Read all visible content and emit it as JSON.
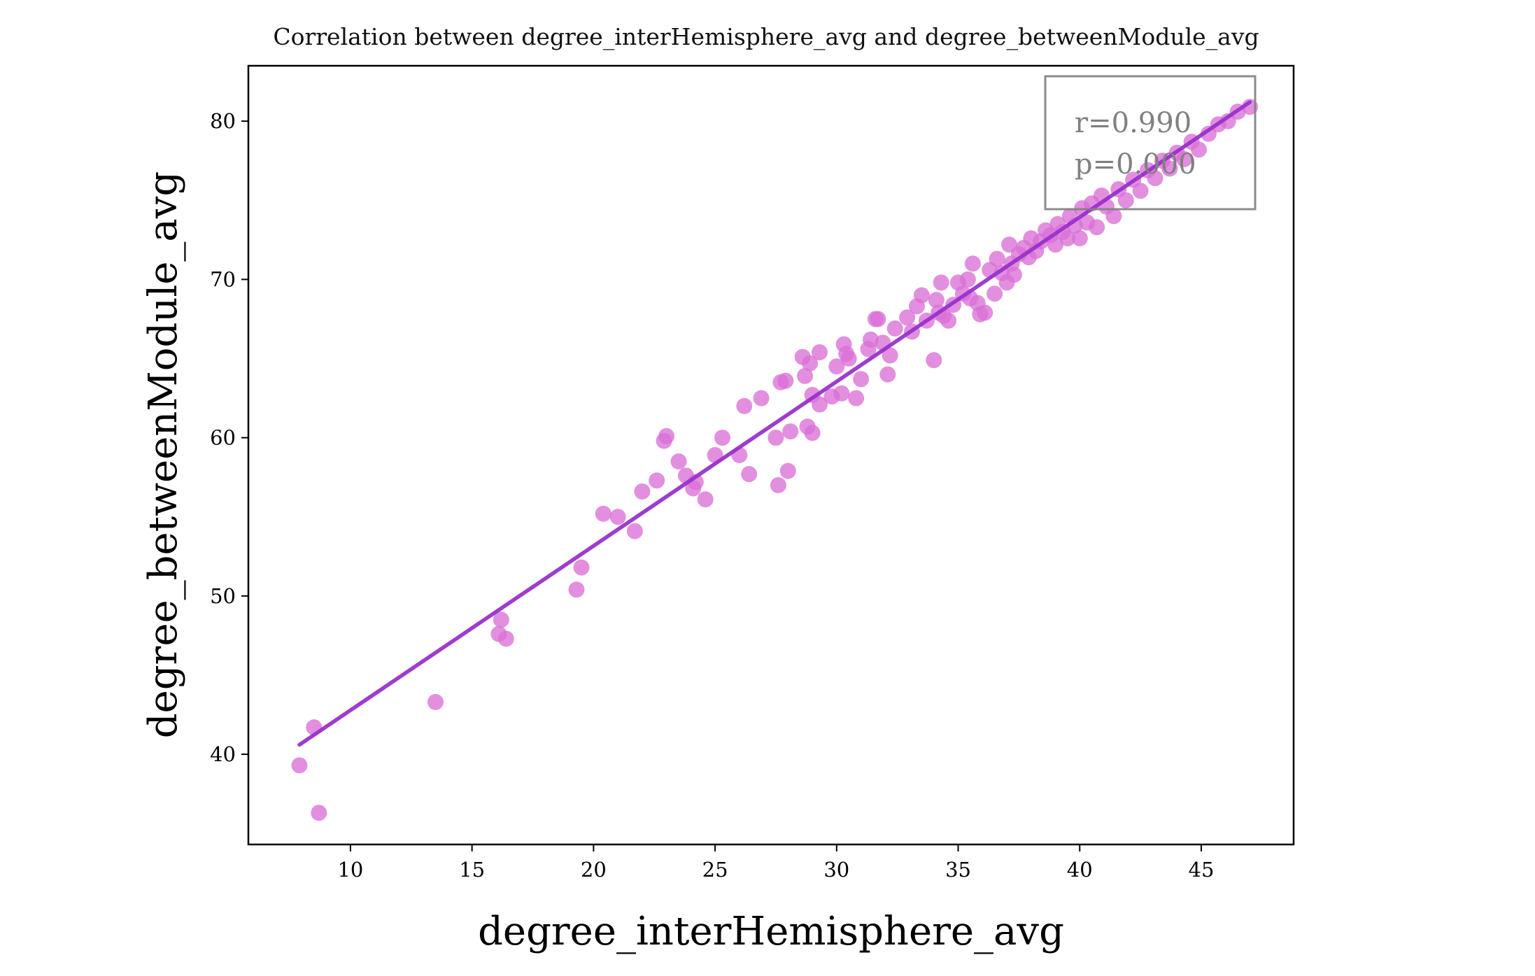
{
  "chart_data": {
    "type": "scatter",
    "title": "Correlation between degree_interHemisphere_avg and degree_betweenModule_avg",
    "xlabel": "degree_interHemisphere_avg",
    "ylabel": "degree_betweenModule_avg",
    "xlim": [
      5.8,
      48.8
    ],
    "ylim": [
      34.3,
      83.5
    ],
    "xticks": [
      10,
      15,
      20,
      25,
      30,
      35,
      40,
      45
    ],
    "yticks": [
      40,
      50,
      60,
      70,
      80
    ],
    "grid": false,
    "annotation": {
      "r_text": "r=0.990",
      "p_text": "p=0.000",
      "placement": "top-right"
    },
    "regression_line": {
      "x": [
        7.9,
        47.0
      ],
      "y": [
        40.6,
        81.2
      ],
      "color": "#9932cc"
    },
    "point_color": "#da70d6",
    "points": [
      [
        7.9,
        39.3
      ],
      [
        8.5,
        41.7
      ],
      [
        8.7,
        36.3
      ],
      [
        13.5,
        43.3
      ],
      [
        16.1,
        47.6
      ],
      [
        16.2,
        48.5
      ],
      [
        16.4,
        47.3
      ],
      [
        19.3,
        50.4
      ],
      [
        19.5,
        51.8
      ],
      [
        20.4,
        55.2
      ],
      [
        21.0,
        55.0
      ],
      [
        21.7,
        54.1
      ],
      [
        22.0,
        56.6
      ],
      [
        22.6,
        57.3
      ],
      [
        22.9,
        59.8
      ],
      [
        23.0,
        60.1
      ],
      [
        23.5,
        58.5
      ],
      [
        23.8,
        57.6
      ],
      [
        24.1,
        56.8
      ],
      [
        24.2,
        57.2
      ],
      [
        24.6,
        56.1
      ],
      [
        25.0,
        58.9
      ],
      [
        25.3,
        60.0
      ],
      [
        26.0,
        58.9
      ],
      [
        26.2,
        62.0
      ],
      [
        26.4,
        57.7
      ],
      [
        26.9,
        62.5
      ],
      [
        27.5,
        60.0
      ],
      [
        27.6,
        57.0
      ],
      [
        27.7,
        63.5
      ],
      [
        27.9,
        63.6
      ],
      [
        28.0,
        57.9
      ],
      [
        28.1,
        60.4
      ],
      [
        28.6,
        65.1
      ],
      [
        28.7,
        63.9
      ],
      [
        28.8,
        60.7
      ],
      [
        28.9,
        64.7
      ],
      [
        29.0,
        62.7
      ],
      [
        29.0,
        60.3
      ],
      [
        29.3,
        62.1
      ],
      [
        29.3,
        65.4
      ],
      [
        29.8,
        62.6
      ],
      [
        30.0,
        64.5
      ],
      [
        30.2,
        62.8
      ],
      [
        30.3,
        65.9
      ],
      [
        30.4,
        65.3
      ],
      [
        30.5,
        65.0
      ],
      [
        30.8,
        62.5
      ],
      [
        31.0,
        63.7
      ],
      [
        31.3,
        65.6
      ],
      [
        31.4,
        66.2
      ],
      [
        31.6,
        67.5
      ],
      [
        31.7,
        67.5
      ],
      [
        31.9,
        66.0
      ],
      [
        32.1,
        64.0
      ],
      [
        32.2,
        65.2
      ],
      [
        32.4,
        66.9
      ],
      [
        32.9,
        67.6
      ],
      [
        33.1,
        66.7
      ],
      [
        33.3,
        68.3
      ],
      [
        33.5,
        69.0
      ],
      [
        33.7,
        67.4
      ],
      [
        34.0,
        64.9
      ],
      [
        34.1,
        68.7
      ],
      [
        34.2,
        67.9
      ],
      [
        34.3,
        69.8
      ],
      [
        34.4,
        67.7
      ],
      [
        34.6,
        67.4
      ],
      [
        34.8,
        68.4
      ],
      [
        35.0,
        69.8
      ],
      [
        35.2,
        69.1
      ],
      [
        35.4,
        70.0
      ],
      [
        35.5,
        68.8
      ],
      [
        35.6,
        71.0
      ],
      [
        35.8,
        68.5
      ],
      [
        35.9,
        67.8
      ],
      [
        36.1,
        67.9
      ],
      [
        36.3,
        70.6
      ],
      [
        36.5,
        69.1
      ],
      [
        36.6,
        71.3
      ],
      [
        36.8,
        70.4
      ],
      [
        37.0,
        69.8
      ],
      [
        37.1,
        72.2
      ],
      [
        37.2,
        71.0
      ],
      [
        37.3,
        70.3
      ],
      [
        37.5,
        71.6
      ],
      [
        37.7,
        72.0
      ],
      [
        37.9,
        71.4
      ],
      [
        38.0,
        72.6
      ],
      [
        38.2,
        71.8
      ],
      [
        38.4,
        72.4
      ],
      [
        38.6,
        73.1
      ],
      [
        38.8,
        72.8
      ],
      [
        39.0,
        72.2
      ],
      [
        39.1,
        73.5
      ],
      [
        39.3,
        73.0
      ],
      [
        39.5,
        72.6
      ],
      [
        39.6,
        74.0
      ],
      [
        39.8,
        73.4
      ],
      [
        40.0,
        72.6
      ],
      [
        40.1,
        74.5
      ],
      [
        40.3,
        73.6
      ],
      [
        40.5,
        74.8
      ],
      [
        40.7,
        73.3
      ],
      [
        40.9,
        75.3
      ],
      [
        41.1,
        74.6
      ],
      [
        41.4,
        74.0
      ],
      [
        41.6,
        75.7
      ],
      [
        41.9,
        75.0
      ],
      [
        42.2,
        76.3
      ],
      [
        42.5,
        75.6
      ],
      [
        42.8,
        76.9
      ],
      [
        43.1,
        76.4
      ],
      [
        43.4,
        77.5
      ],
      [
        43.7,
        77.0
      ],
      [
        44.0,
        78.0
      ],
      [
        44.3,
        77.6
      ],
      [
        44.6,
        78.7
      ],
      [
        44.9,
        78.2
      ],
      [
        45.3,
        79.2
      ],
      [
        45.7,
        79.8
      ],
      [
        46.1,
        80.0
      ],
      [
        46.5,
        80.6
      ],
      [
        47.0,
        80.9
      ]
    ]
  }
}
